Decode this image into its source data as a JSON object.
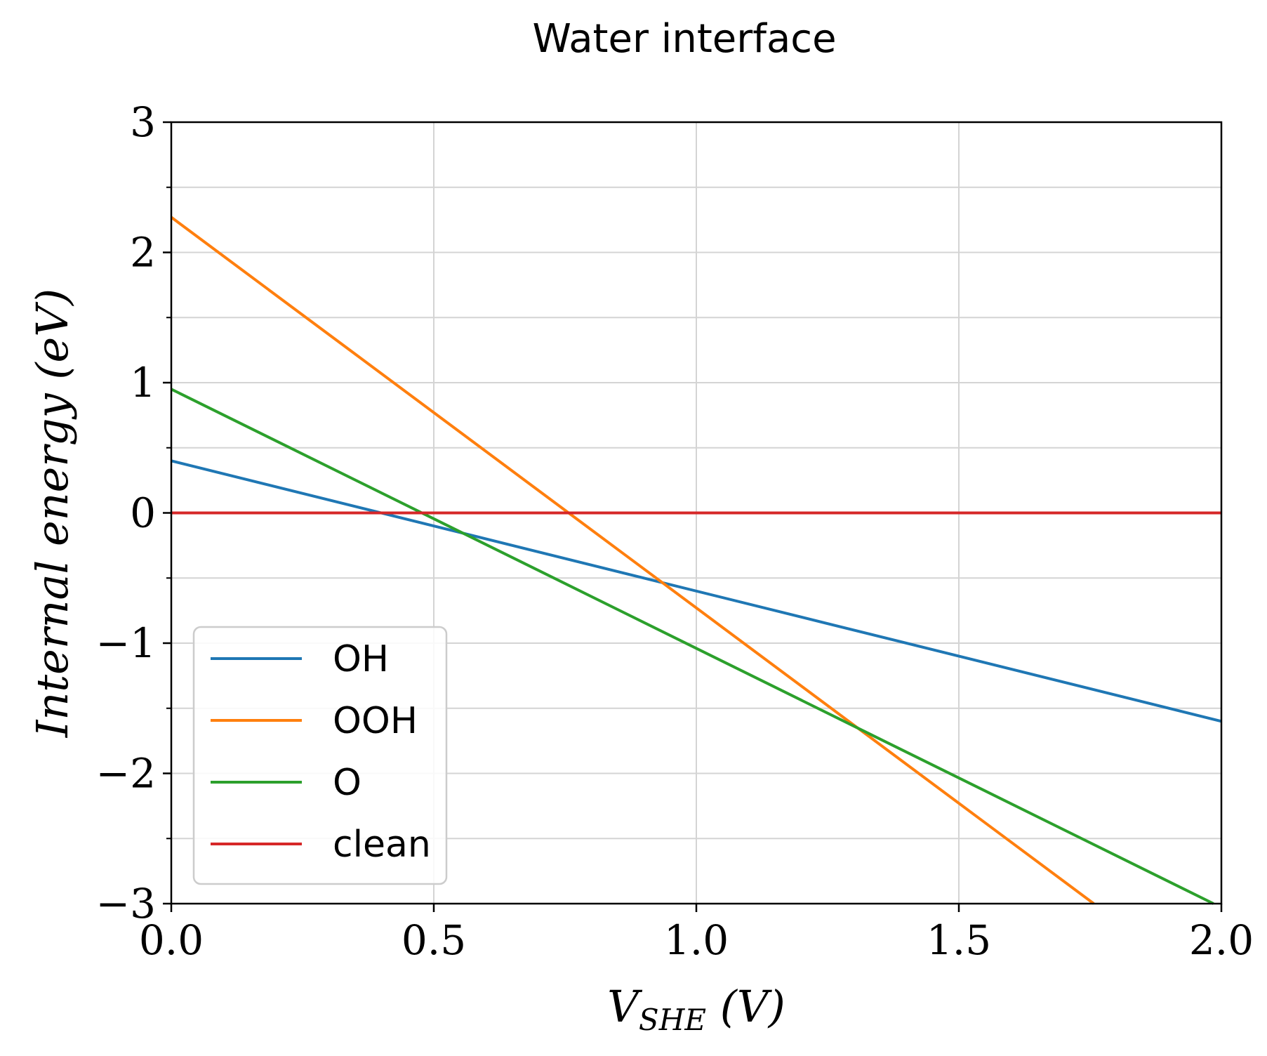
{
  "chart_data": {
    "type": "line",
    "title": "Water interface",
    "xlabel": "V_SHE (V)",
    "ylabel": "Internal energy (eV)",
    "xlim": [
      0.0,
      2.0
    ],
    "ylim": [
      -3,
      3
    ],
    "xticks": [
      "0.0",
      "0.5",
      "1.0",
      "1.5",
      "2.0"
    ],
    "yticks": [
      "−3",
      "−2",
      "−1",
      "0",
      "1",
      "2",
      "3"
    ],
    "x_tick_values": [
      0.0,
      0.5,
      1.0,
      1.5,
      2.0
    ],
    "y_tick_values": [
      -3,
      -2,
      -1,
      0,
      1,
      2,
      3
    ],
    "y_minor_tick_values": [
      -2.5,
      -1.5,
      -0.5,
      0.5,
      1.5,
      2.5
    ],
    "grid": true,
    "legend_position": "lower-left",
    "series": [
      {
        "name": "OH",
        "color": "#1f77b4",
        "x": [
          0.0,
          2.0
        ],
        "y": [
          0.4,
          -1.6
        ]
      },
      {
        "name": "OOH",
        "color": "#ff7f0e",
        "x": [
          0.0,
          1.757
        ],
        "y": [
          2.27,
          -3.0
        ]
      },
      {
        "name": "O",
        "color": "#2ca02c",
        "x": [
          0.0,
          1.985
        ],
        "y": [
          0.95,
          -3.0
        ]
      },
      {
        "name": "clean",
        "color": "#d62728",
        "x": [
          0.0,
          2.0
        ],
        "y": [
          0.0,
          0.0
        ]
      }
    ]
  }
}
